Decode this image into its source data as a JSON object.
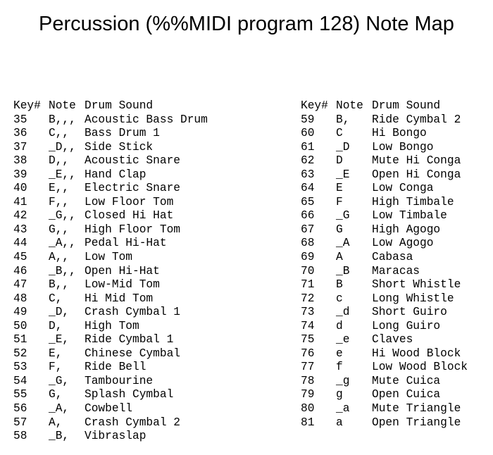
{
  "title": "Percussion (%%MIDI program 128) Note Map",
  "headers": {
    "key": "Key#",
    "note": "Note",
    "sound": "Drum Sound"
  },
  "left": [
    {
      "key": "35",
      "note": "B,,,",
      "sound": "Acoustic Bass Drum"
    },
    {
      "key": "36",
      "note": "C,,",
      "sound": "Bass Drum 1"
    },
    {
      "key": "37",
      "note": "_D,,",
      "sound": "Side Stick"
    },
    {
      "key": "38",
      "note": "D,,",
      "sound": "Acoustic Snare"
    },
    {
      "key": "39",
      "note": "_E,,",
      "sound": "Hand Clap"
    },
    {
      "key": "40",
      "note": "E,,",
      "sound": "Electric Snare"
    },
    {
      "key": "41",
      "note": "F,,",
      "sound": "Low Floor Tom"
    },
    {
      "key": "42",
      "note": "_G,,",
      "sound": "Closed Hi Hat"
    },
    {
      "key": "43",
      "note": "G,,",
      "sound": "High Floor Tom"
    },
    {
      "key": "44",
      "note": "_A,,",
      "sound": "Pedal Hi-Hat"
    },
    {
      "key": "45",
      "note": "A,,",
      "sound": "Low Tom"
    },
    {
      "key": "46",
      "note": "_B,,",
      "sound": "Open Hi-Hat"
    },
    {
      "key": "47",
      "note": "B,,",
      "sound": "Low-Mid Tom"
    },
    {
      "key": "48",
      "note": "C,",
      "sound": "Hi Mid Tom"
    },
    {
      "key": "49",
      "note": "_D,",
      "sound": "Crash Cymbal 1"
    },
    {
      "key": "50",
      "note": "D,",
      "sound": "High Tom"
    },
    {
      "key": "51",
      "note": "_E,",
      "sound": "Ride Cymbal 1"
    },
    {
      "key": "52",
      "note": "E,",
      "sound": "Chinese Cymbal"
    },
    {
      "key": "53",
      "note": "F,",
      "sound": "Ride Bell"
    },
    {
      "key": "54",
      "note": "_G,",
      "sound": "Tambourine"
    },
    {
      "key": "55",
      "note": "G,",
      "sound": "Splash Cymbal"
    },
    {
      "key": "56",
      "note": "_A,",
      "sound": "Cowbell"
    },
    {
      "key": "57",
      "note": "A,",
      "sound": "Crash Cymbal 2"
    },
    {
      "key": "58",
      "note": "_B,",
      "sound": "Vibraslap"
    }
  ],
  "right": [
    {
      "key": "59",
      "note": "B,",
      "sound": "Ride Cymbal 2"
    },
    {
      "key": "60",
      "note": "C",
      "sound": "Hi Bongo"
    },
    {
      "key": "61",
      "note": "_D",
      "sound": "Low Bongo"
    },
    {
      "key": "62",
      "note": "D",
      "sound": "Mute Hi Conga"
    },
    {
      "key": "63",
      "note": "_E",
      "sound": "Open Hi Conga"
    },
    {
      "key": "64",
      "note": "E",
      "sound": "Low Conga"
    },
    {
      "key": "65",
      "note": "F",
      "sound": "High Timbale"
    },
    {
      "key": "66",
      "note": "_G",
      "sound": "Low Timbale"
    },
    {
      "key": "67",
      "note": "G",
      "sound": "High Agogo"
    },
    {
      "key": "68",
      "note": "_A",
      "sound": "Low Agogo"
    },
    {
      "key": "69",
      "note": "A",
      "sound": "Cabasa"
    },
    {
      "key": "70",
      "note": "_B",
      "sound": "Maracas"
    },
    {
      "key": "71",
      "note": "B",
      "sound": "Short Whistle"
    },
    {
      "key": "72",
      "note": "c",
      "sound": "Long Whistle"
    },
    {
      "key": "73",
      "note": "_d",
      "sound": "Short Guiro"
    },
    {
      "key": "74",
      "note": "d",
      "sound": "Long Guiro"
    },
    {
      "key": "75",
      "note": "_e",
      "sound": "Claves"
    },
    {
      "key": "76",
      "note": "e",
      "sound": "Hi Wood Block"
    },
    {
      "key": "77",
      "note": "f",
      "sound": "Low Wood Block"
    },
    {
      "key": "78",
      "note": "_g",
      "sound": "Mute Cuica"
    },
    {
      "key": "79",
      "note": "g",
      "sound": "Open Cuica"
    },
    {
      "key": "80",
      "note": "_a",
      "sound": "Mute Triangle"
    },
    {
      "key": "81",
      "note": "a",
      "sound": "Open Triangle"
    }
  ]
}
